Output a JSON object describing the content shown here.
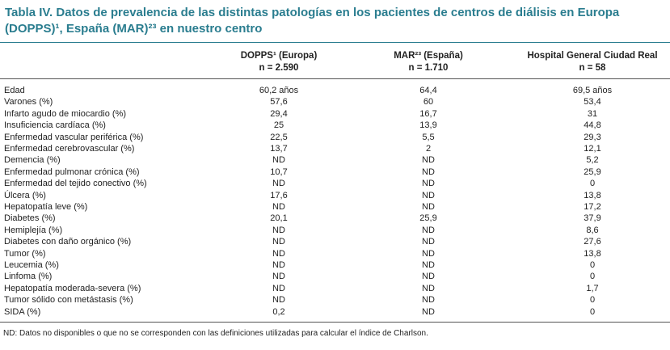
{
  "header": {
    "title_line1": "Tabla IV. Datos de prevalencia de las distintas patologías en los pacientes de centros de diálisis en Europa",
    "title_line2": "(DOPPS)¹, España (MAR)²³ en nuestro centro"
  },
  "table": {
    "columns": [
      {
        "name": "DOPPS¹ (Europa)",
        "n": "n = 2.590"
      },
      {
        "name": "MAR²³ (España)",
        "n": "n = 1.710"
      },
      {
        "name": "Hospital General Ciudad Real",
        "n": "n = 58"
      }
    ],
    "rows": [
      [
        "Edad",
        "60,2 años",
        "64,4",
        "69,5 años"
      ],
      [
        "Varones (%)",
        "57,6",
        "60",
        "53,4"
      ],
      [
        "Infarto agudo de miocardio (%)",
        "29,4",
        "16,7",
        "31"
      ],
      [
        "Insuficiencia cardíaca (%)",
        "25",
        "13,9",
        "44,8"
      ],
      [
        "Enfermedad vascular periférica  (%)",
        "22,5",
        "5,5",
        "29,3"
      ],
      [
        "Enfermedad cerebrovascular (%)",
        "13,7",
        "2",
        "12,1"
      ],
      [
        "Demencia (%)",
        "ND",
        "ND",
        "5,2"
      ],
      [
        "Enfermedad pulmonar crónica (%)",
        "10,7",
        "ND",
        "25,9"
      ],
      [
        "Enfermedad del tejido conectivo (%)",
        "ND",
        "ND",
        "0"
      ],
      [
        "Úlcera (%)",
        "17,6",
        "ND",
        "13,8"
      ],
      [
        "Hepatopatía leve (%)",
        "ND",
        "ND",
        "17,2"
      ],
      [
        "Diabetes (%)",
        "20,1",
        "25,9",
        "37,9"
      ],
      [
        "Hemiplejía (%)",
        "ND",
        "ND",
        "8,6"
      ],
      [
        "Diabetes con daño orgánico (%)",
        "ND",
        "ND",
        "27,6"
      ],
      [
        "Tumor (%)",
        "ND",
        "ND",
        "13,8"
      ],
      [
        "Leucemia (%)",
        "ND",
        "ND",
        "0"
      ],
      [
        "Linfoma (%)",
        "ND",
        "ND",
        "0"
      ],
      [
        "Hepatopatía moderada-severa (%)",
        "ND",
        "ND",
        "1,7"
      ],
      [
        "Tumor sólido con metástasis (%)",
        "ND",
        "ND",
        "0"
      ],
      [
        "SIDA (%)",
        "0,2",
        "ND",
        "0"
      ]
    ]
  },
  "footnote": "ND: Datos no disponibles o que no se corresponden con las definiciones utilizadas para calcular el índice de Charlson."
}
